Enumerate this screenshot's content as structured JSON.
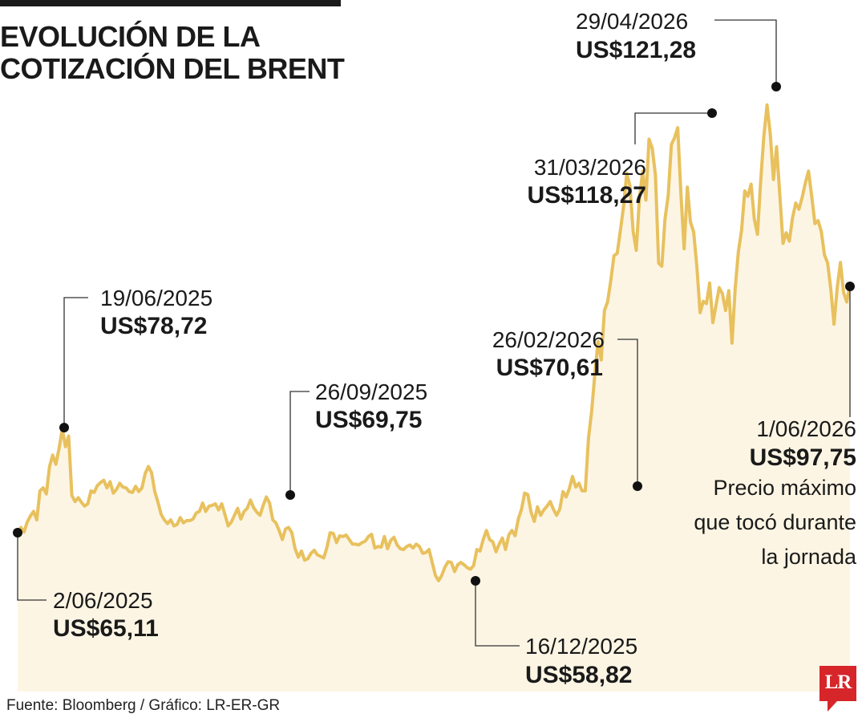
{
  "header": {
    "title_line1": "EVOLUCIÓN DE LA",
    "title_line2": "COTIZACIÓN DEL BRENT"
  },
  "footer": {
    "source": "Fuente: Bloomberg / Gráfico: LR-ER-GR",
    "logo_text": "LR"
  },
  "colors": {
    "line": "#e8c15e",
    "area_fill": "#fdf5e4",
    "marker": "#111111",
    "leader": "#333333",
    "logo": "#d6262a"
  },
  "chart_data": {
    "type": "area",
    "title": "EVOLUCIÓN DE LA COTIZACIÓN DEL BRENT",
    "xlabel": "",
    "ylabel": "",
    "x_range": [
      "2/06/2025",
      "1/06/2026"
    ],
    "ylim": [
      45,
      128
    ],
    "grid": false,
    "axes_visible": false,
    "series": [
      {
        "values": [
          65.1,
          65.8,
          65.2,
          66.5,
          67.3,
          67.9,
          66.8,
          70.6,
          71.0,
          70.2,
          73.8,
          75.3,
          74.1,
          76.2,
          78.7,
          76.4,
          77.8,
          70.0,
          69.2,
          69.7,
          69.1,
          68.6,
          68.9,
          70.6,
          70.4,
          71.3,
          71.7,
          72.0,
          71.0,
          71.8,
          70.3,
          70.8,
          71.6,
          71.1,
          71.0,
          70.5,
          70.4,
          71.2,
          70.5,
          71.0,
          72.9,
          73.8,
          73.0,
          70.5,
          69.1,
          67.5,
          66.8,
          66.3,
          66.8,
          66.0,
          66.2,
          67.1,
          66.4,
          66.7,
          66.7,
          66.9,
          67.7,
          67.9,
          69.0,
          67.9,
          68.6,
          68.7,
          68.9,
          68.1,
          68.9,
          67.5,
          66.0,
          66.5,
          67.4,
          68.3,
          66.9,
          67.9,
          68.3,
          69.4,
          68.4,
          67.8,
          67.4,
          68.7,
          69.8,
          69.0,
          66.8,
          66.4,
          65.4,
          64.2,
          65.6,
          65.8,
          65.1,
          63.0,
          61.9,
          62.7,
          61.5,
          61.7,
          62.4,
          62.8,
          62.2,
          62.0,
          61.8,
          63.2,
          65.1,
          65.0,
          63.8,
          64.7,
          64.6,
          64.8,
          64.2,
          63.6,
          63.6,
          63.5,
          63.8,
          64.0,
          64.6,
          64.9,
          63.1,
          63.3,
          63.2,
          64.6,
          63.0,
          64.1,
          64.5,
          63.5,
          63.0,
          62.9,
          63.3,
          63.5,
          63.1,
          63.6,
          63.3,
          62.4,
          62.5,
          62.9,
          61.2,
          59.5,
          58.8,
          59.5,
          60.6,
          61.3,
          61.2,
          60.0,
          60.9,
          61.2,
          60.9,
          60.5,
          60.3,
          60.8,
          62.9,
          62.7,
          64.2,
          65.4,
          64.2,
          63.9,
          62.6,
          63.6,
          64.4,
          62.9,
          64.8,
          65.4,
          64.7,
          66.9,
          68.2,
          70.3,
          70.1,
          67.8,
          66.6,
          68.5,
          67.4,
          68.1,
          68.6,
          69.2,
          68.2,
          67.4,
          68.2,
          70.5,
          69.8,
          70.9,
          72.5,
          71.1,
          71.6,
          70.6,
          70.6,
          77.5,
          81.1,
          85.9,
          90.2,
          87.8,
          94.3,
          95.4,
          98.2,
          101.5,
          101.8,
          104.8,
          107.9,
          112.3,
          110.7,
          104.7,
          102.2,
          109.1,
          112.6,
          108.8,
          116.8,
          115.6,
          112.1,
          100.5,
          100.1,
          106.3,
          109.4,
          116.1,
          117.0,
          118.3,
          109.6,
          102.4,
          110.5,
          105.9,
          104.6,
          100.0,
          94.0,
          95.5,
          95.2,
          97.9,
          92.7,
          95.0,
          97.3,
          96.5,
          94.3,
          96.9,
          90.0,
          97.1,
          102.0,
          104.8,
          110.0,
          109.3,
          110.9,
          106.3,
          104.3,
          111.2,
          117.2,
          121.3,
          117.5,
          111.5,
          115.8,
          109.5,
          103.1,
          104.5,
          103.4,
          106.5,
          108.4,
          107.6,
          109.1,
          111.0,
          112.6,
          109.3,
          105.7,
          106.1,
          104.7,
          101.6,
          100.5,
          97.1,
          92.5,
          97.3,
          100.6,
          96.7,
          95.4,
          97.75
        ]
      }
    ],
    "annotations": [
      {
        "date": "2/06/2025",
        "value_label": "US$65,11",
        "value": 65.11
      },
      {
        "date": "19/06/2025",
        "value_label": "US$78,72",
        "value": 78.72
      },
      {
        "date": "26/09/2025",
        "value_label": "US$69,75",
        "value": 69.75
      },
      {
        "date": "16/12/2025",
        "value_label": "US$58,82",
        "value": 58.82
      },
      {
        "date": "26/02/2026",
        "value_label": "US$70,61",
        "value": 70.61
      },
      {
        "date": "31/03/2026",
        "value_label": "US$118,27",
        "value": 118.27
      },
      {
        "date": "29/04/2026",
        "value_label": "US$121,28",
        "value": 121.28
      },
      {
        "date": "1/06/2026",
        "value_label": "US$97,75",
        "value": 97.75,
        "note": [
          "Precio máximo",
          "que tocó durante",
          "la jornada"
        ]
      }
    ]
  }
}
